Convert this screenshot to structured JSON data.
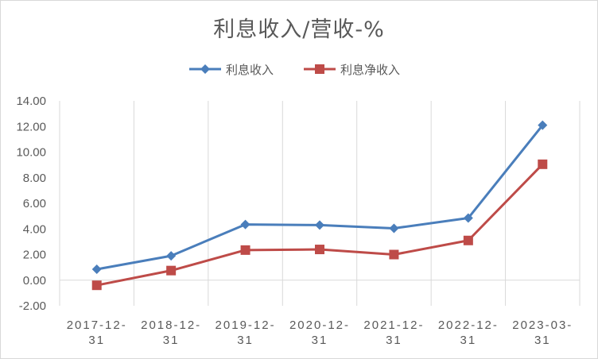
{
  "chart_data": {
    "type": "line",
    "title": "利息收入/营收-%",
    "categories": [
      [
        "2017-12-",
        "31"
      ],
      [
        "2018-12-",
        "31"
      ],
      [
        "2019-12-",
        "31"
      ],
      [
        "2020-12-",
        "31"
      ],
      [
        "2021-12-",
        "31"
      ],
      [
        "2022-12-",
        "31"
      ],
      [
        "2023-03-",
        "31"
      ]
    ],
    "series": [
      {
        "name": "利息收入",
        "color": "#4a7ebb",
        "marker": "diamond",
        "values": [
          0.85,
          1.9,
          4.35,
          4.3,
          4.05,
          4.85,
          12.1
        ]
      },
      {
        "name": "利息净收入",
        "color": "#be4b48",
        "marker": "square",
        "values": [
          -0.4,
          0.75,
          2.35,
          2.4,
          2.0,
          3.1,
          9.05
        ]
      }
    ],
    "ylim": [
      -2,
      14
    ],
    "yticks": [
      "-2.00",
      "0.00",
      "2.00",
      "4.00",
      "6.00",
      "8.00",
      "10.00",
      "12.00",
      "14.00"
    ],
    "ytick_values": [
      -2,
      0,
      2,
      4,
      6,
      8,
      10,
      12,
      14
    ],
    "grid": "vertical",
    "legend_position": "top"
  }
}
